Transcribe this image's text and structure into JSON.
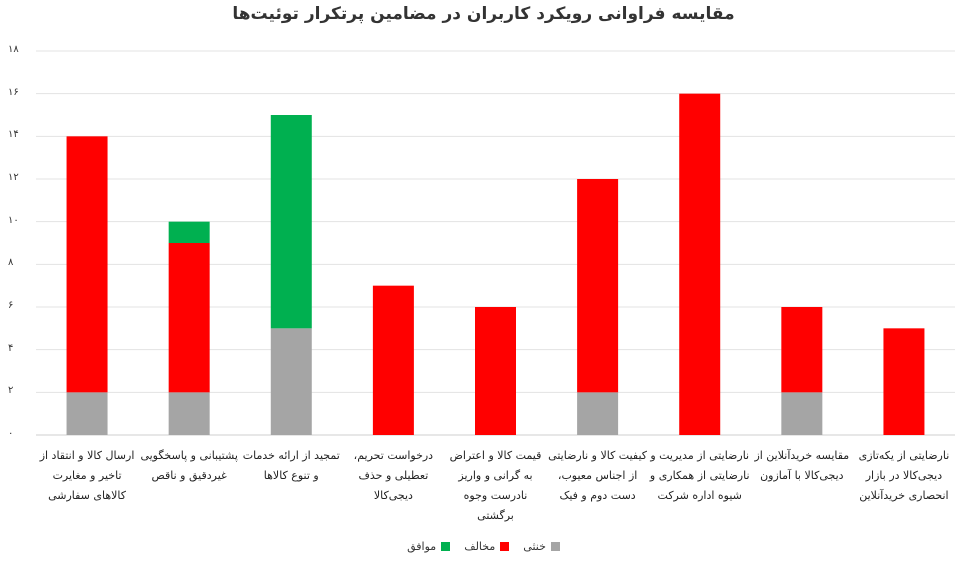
{
  "chart_data": {
    "type": "bar",
    "stacked": true,
    "title": "مقایسه فراوانی رویکرد کاربران در مضامین پرتکرار توئیت‌ها",
    "xlabel": "",
    "ylabel": "",
    "ylim": [
      0,
      18
    ],
    "y_ticks": [
      "۰",
      "۲",
      "۴",
      "۶",
      "۸",
      "۱۰",
      "۱۲",
      "۱۴",
      "۱۶",
      "۱۸"
    ],
    "y_tick_values": [
      0,
      2,
      4,
      6,
      8,
      10,
      12,
      14,
      16,
      18
    ],
    "grid": true,
    "legend_position": "bottom",
    "categories": [
      "ارسال کالا و انتقاد از تاخیر و مغایرت کالاهای سفارشی",
      "پشتیبانی و پاسخگویی غیردقیق و ناقص",
      "تمجید از ارائه خدمات و تنوع کالاها",
      "درخواست تحریم، تعطیلی و حذف دیجی‌کالا",
      "قیمت کالا و اعتراض به گرانی و واریز نادرست وجوه برگشتی",
      "کیفیت کالا و نارضایتی از اجناس معیوب، دست دوم و فیک",
      "نارضایتی از مدیریت و نارضایتی از همکاری و شیوه اداره شرکت",
      "مقایسه خریدآنلاین از دیجی‌کالا با آمازون",
      "نارضایتی از یکه‌تازی دیجی‌کالا در بازار انحصاری خریدآنلاین"
    ],
    "series": [
      {
        "name": "خنثی",
        "color": "#a5a5a5",
        "values": [
          2,
          2,
          5,
          0,
          0,
          2,
          0,
          2,
          0
        ]
      },
      {
        "name": "مخالف",
        "color": "#ff0000",
        "values": [
          12,
          7,
          0,
          7,
          6,
          10,
          16,
          4,
          5
        ]
      },
      {
        "name": "موافق",
        "color": "#00b050",
        "values": [
          0,
          1,
          10,
          0,
          0,
          0,
          0,
          0,
          0
        ]
      }
    ]
  }
}
